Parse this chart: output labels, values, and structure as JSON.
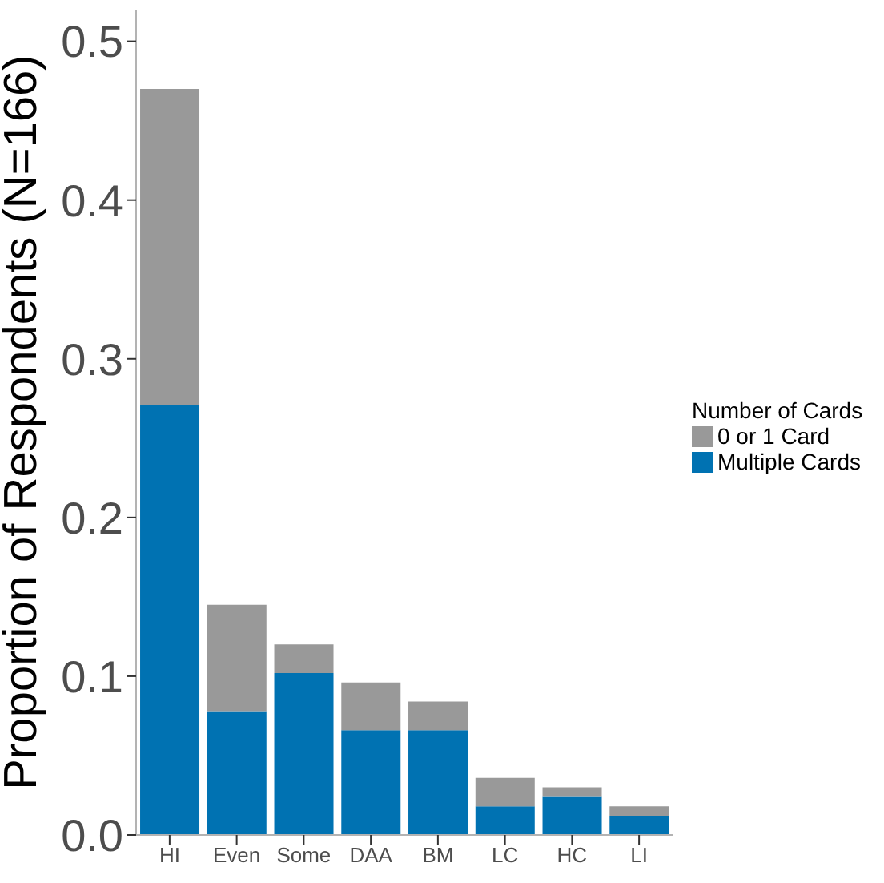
{
  "chart_data": {
    "type": "bar",
    "ylabel": "Proportion of Respondents (N=166)",
    "legend_title": "Number of Cards",
    "categories": [
      "HI",
      "Even",
      "Some",
      "DAA",
      "BM",
      "LC",
      "HC",
      "LI"
    ],
    "stacked": true,
    "legend": "right",
    "grid": false,
    "ylim": [
      0,
      0.52
    ],
    "yticks": [
      {
        "value": 0,
        "label": "0.0"
      },
      0.1,
      0.2,
      0.3,
      0.4,
      0.5
    ],
    "series": [
      {
        "name": "Multiple Cards",
        "color": "#0072b2",
        "values": [
          0.271,
          0.078,
          0.102,
          0.066,
          0.066,
          0.018,
          0.024,
          0.012
        ]
      },
      {
        "name": "0 or 1 Card",
        "color": "#999999",
        "values": [
          0.199,
          0.067,
          0.018,
          0.03,
          0.018,
          0.018,
          0.006,
          0.006
        ]
      }
    ]
  }
}
